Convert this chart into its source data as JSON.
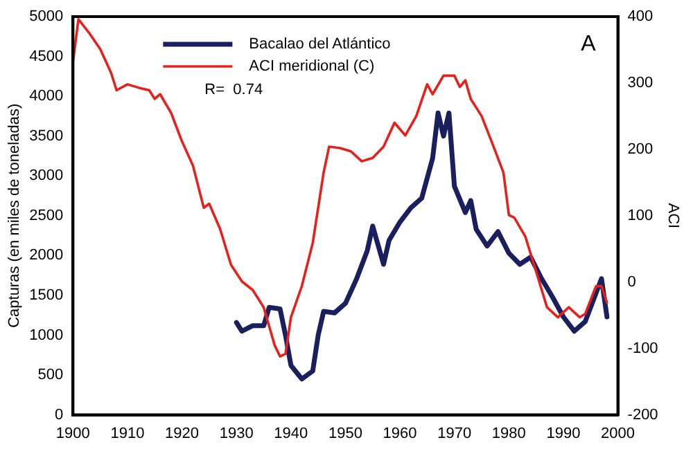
{
  "chart_data": {
    "type": "line",
    "ylabel": "Capturas (en miles de toneladas)",
    "y2label": "ACI",
    "annotations": [
      "A",
      "R=  0.74"
    ],
    "xlim": [
      1900,
      2000
    ],
    "xticks": [
      1900,
      1910,
      1920,
      1930,
      1940,
      1950,
      1960,
      1970,
      1980,
      1990,
      2000
    ],
    "ylim": [
      0,
      5000
    ],
    "yticks": [
      0,
      500,
      1000,
      1500,
      2000,
      2500,
      3000,
      3500,
      4000,
      4500,
      5000
    ],
    "y2lim": [
      -200,
      400
    ],
    "y2ticks": [
      -200,
      -100,
      0,
      100,
      200,
      300,
      400
    ],
    "grid": false,
    "legend": "top left",
    "marker": "none",
    "line_style": "solid",
    "series": [
      {
        "name": "Bacalao del Atlántico",
        "color": "#1a1f5e",
        "x": [
          1930,
          1931,
          1933,
          1935,
          1936,
          1938,
          1939,
          1940,
          1942,
          1944,
          1945,
          1946,
          1948,
          1950,
          1952,
          1954,
          1955,
          1957,
          1958,
          1960,
          1962,
          1964,
          1966,
          1967,
          1968,
          1969,
          1970,
          1972,
          1973,
          1974,
          1976,
          1978,
          1980,
          1982,
          1984,
          1986,
          1988,
          1990,
          1992,
          1994,
          1996,
          1997,
          1998
        ],
        "values": [
          1160,
          1050,
          1120,
          1120,
          1350,
          1330,
          1000,
          620,
          450,
          550,
          1000,
          1300,
          1280,
          1400,
          1700,
          2060,
          2370,
          1890,
          2190,
          2420,
          2600,
          2720,
          3220,
          3790,
          3500,
          3790,
          2870,
          2540,
          2690,
          2330,
          2120,
          2300,
          2030,
          1890,
          1980,
          1710,
          1480,
          1230,
          1050,
          1170,
          1530,
          1710,
          1230
        ]
      },
      {
        "name": "ACI meridional (C)",
        "color": "#e8201c",
        "axis": "y2",
        "x": [
          1900,
          1901,
          1903,
          1905,
          1907,
          1908,
          1910,
          1912,
          1914,
          1915,
          1916,
          1918,
          1920,
          1922,
          1924,
          1925,
          1927,
          1929,
          1931,
          1933,
          1935,
          1937,
          1938,
          1939,
          1940,
          1942,
          1944,
          1946,
          1947,
          1949,
          1951,
          1953,
          1955,
          1957,
          1959,
          1961,
          1963,
          1965,
          1966,
          1968,
          1970,
          1971,
          1972,
          1973,
          1975,
          1977,
          1979,
          1980,
          1981,
          1983,
          1985,
          1987,
          1989,
          1991,
          1993,
          1994,
          1996,
          1997,
          1998
        ],
        "values": [
          332,
          396,
          375,
          351,
          315,
          289,
          298,
          293,
          289,
          276,
          283,
          255,
          212,
          176,
          112,
          118,
          80,
          26,
          1,
          -12,
          -38,
          -95,
          -112,
          -108,
          -53,
          -6,
          59,
          165,
          204,
          202,
          197,
          182,
          187,
          204,
          240,
          221,
          250,
          298,
          283,
          311,
          311,
          294,
          304,
          276,
          250,
          208,
          165,
          101,
          97,
          69,
          16,
          -38,
          -53,
          -38,
          -53,
          -48,
          -6,
          -6,
          -31
        ]
      }
    ]
  }
}
